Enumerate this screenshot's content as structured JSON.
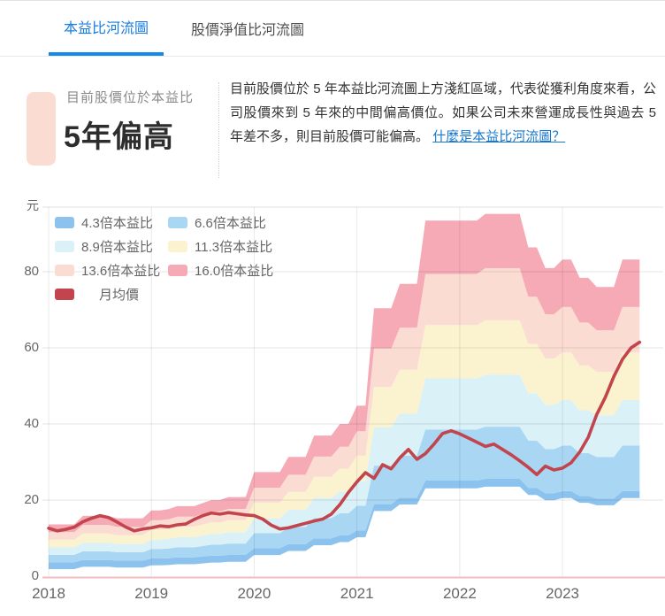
{
  "tabs": [
    {
      "label": "本益比河流圖",
      "active": true
    },
    {
      "label": "股價淨值比河流圖",
      "active": false
    }
  ],
  "summary": {
    "label": "目前股價位於本益比",
    "verdict": "5年偏高",
    "swatch_color": "#fbdcd3"
  },
  "description": {
    "text": "目前股價位於 5 年本益比河流圖上方淺紅區域，代表從獲利角度來看，公司股價來到 5 年來的中間偏高價位。如果公司未來營運成長性與過去 5 年差不多，則目前股價可能偏高。",
    "link_text": "什麼是本益比河流圖？",
    "link_color": "#1878d0"
  },
  "chart_data": {
    "type": "area",
    "subtype": "pe-river",
    "unit": "元",
    "x_start": "2018-01",
    "x_end": "2023-10",
    "x_year_labels": [
      "2018",
      "2019",
      "2020",
      "2021",
      "2022",
      "2023"
    ],
    "y_ticks": [
      0,
      20,
      40,
      60,
      80
    ],
    "ylim": [
      0,
      97
    ],
    "grid": true,
    "legend_position": "top-left-inside",
    "pe_multiples": [
      4.3,
      6.6,
      8.9,
      11.3,
      13.6,
      16.0
    ],
    "series": [
      {
        "name": "4.3倍本益比",
        "color": "#8cc3ee"
      },
      {
        "name": "6.6倍本益比",
        "color": "#a9d6f2"
      },
      {
        "name": "8.9倍本益比",
        "color": "#daf1f8"
      },
      {
        "name": "11.3倍本益比",
        "color": "#fbf3d0"
      },
      {
        "name": "13.6倍本益比",
        "color": "#fbdcd2"
      },
      {
        "name": "16.0倍本益比",
        "color": "#f5aab5"
      },
      {
        "name": "月均價",
        "color": "#c2454d"
      }
    ],
    "eps_ttm": [
      0.85,
      0.85,
      0.85,
      0.85,
      0.99,
      0.99,
      0.99,
      0.99,
      0.95,
      0.95,
      0.95,
      0.95,
      1.08,
      1.08,
      1.1,
      1.15,
      1.15,
      1.15,
      1.2,
      1.25,
      1.25,
      1.3,
      1.3,
      1.3,
      1.71,
      1.71,
      1.71,
      1.71,
      1.96,
      1.96,
      1.96,
      2.31,
      2.31,
      2.31,
      2.5,
      2.5,
      2.8,
      2.8,
      4.4,
      4.4,
      4.4,
      4.8,
      4.8,
      4.8,
      5.84,
      5.84,
      5.84,
      5.84,
      5.84,
      5.84,
      5.84,
      5.95,
      5.95,
      5.95,
      5.95,
      5.95,
      5.4,
      5.4,
      5.06,
      5.06,
      5.2,
      5.2,
      4.9,
      4.9,
      4.75,
      4.75,
      4.75,
      5.2,
      5.2,
      5.2
    ],
    "monthly_avg_price": [
      12.6,
      11.9,
      12.3,
      12.9,
      14.3,
      15.2,
      15.9,
      15.4,
      14.2,
      12.9,
      11.9,
      12.4,
      12.7,
      13.2,
      13.0,
      13.5,
      13.7,
      14.9,
      15.9,
      16.6,
      16.3,
      16.7,
      16.4,
      16.1,
      15.9,
      15.0,
      13.4,
      12.4,
      12.7,
      13.3,
      13.9,
      14.5,
      15.0,
      16.3,
      18.8,
      22.0,
      24.8,
      27.2,
      25.7,
      29.3,
      28.2,
      31.1,
      33.3,
      30.7,
      32.2,
      34.7,
      37.5,
      38.2,
      37.4,
      36.3,
      35.2,
      34.1,
      34.7,
      33.3,
      31.9,
      30.3,
      28.6,
      26.7,
      28.9,
      27.9,
      28.4,
      29.8,
      32.6,
      36.5,
      42.5,
      47.0,
      52.5,
      57.0,
      60.0,
      61.5
    ],
    "line_color": "#c2444c",
    "baseline_color": "#f0bdc3"
  }
}
